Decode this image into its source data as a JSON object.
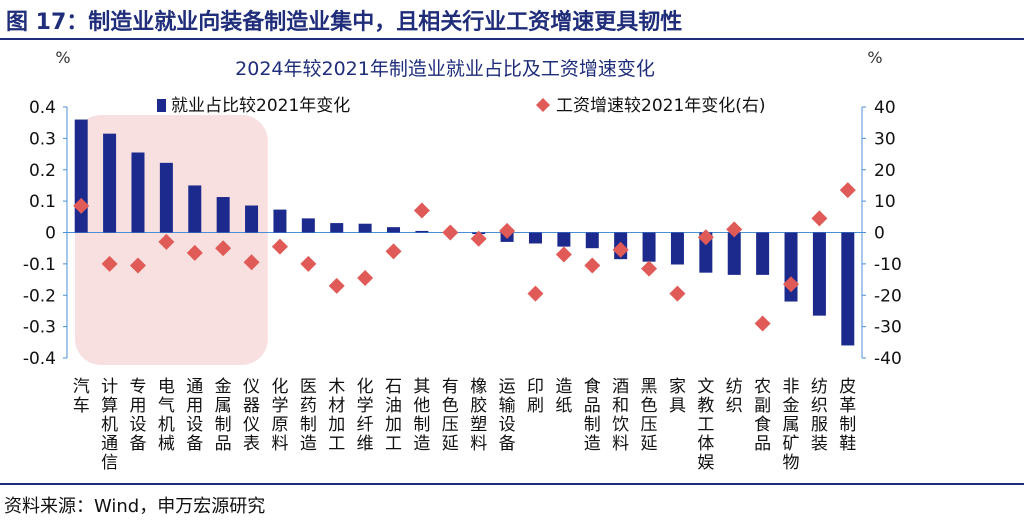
{
  "figure": {
    "caption": "图 17：制造业就业向装备制造业集中，且相关行业工资增速更具韧性",
    "source": "资料来源：Wind，申万宏源研究"
  },
  "colors": {
    "bar": "#1b2a8c",
    "marker": "#e05b57",
    "highlight": "#f8dfe0",
    "brand": "#1f2d7a"
  },
  "chart_data": {
    "type": "bar",
    "title": "2024年较2021年制造业就业占比及工资增速变化",
    "y_left_unit": "%",
    "y_right_unit": "%",
    "ylim_left": [
      -0.4,
      0.4
    ],
    "yticks_left": [
      "0.4",
      "0.3",
      "0.2",
      "0.1",
      "0",
      "-0.1",
      "-0.2",
      "-0.3",
      "-0.4"
    ],
    "ylim_right": [
      -40,
      40
    ],
    "yticks_right": [
      "40",
      "30",
      "20",
      "10",
      "0",
      "-10",
      "-20",
      "-30",
      "-40"
    ],
    "legend_position": "top",
    "categories": [
      "汽车",
      "计算机通信",
      "专用设备",
      "电气机械",
      "通用设备",
      "金属制品",
      "仪器仪表",
      "化学原料",
      "医药制造",
      "木材加工",
      "化学纤维",
      "石油加工",
      "其他制造",
      "有色压延",
      "橡胶塑料",
      "运输设备",
      "印刷",
      "造纸",
      "食品制造",
      "酒和饮料",
      "黑色压延",
      "家具",
      "文教工体娱",
      "纺织",
      "农副食品",
      "非金属矿物",
      "纺织服装",
      "皮革制鞋"
    ],
    "series": [
      {
        "name": "就业占比较2021年变化",
        "type": "bar",
        "axis": "left",
        "values": [
          0.36,
          0.315,
          0.255,
          0.222,
          0.15,
          0.113,
          0.086,
          0.073,
          0.045,
          0.03,
          0.028,
          0.017,
          0.005,
          -0.003,
          -0.005,
          -0.03,
          -0.035,
          -0.045,
          -0.05,
          -0.085,
          -0.093,
          -0.102,
          -0.128,
          -0.135,
          -0.135,
          -0.22,
          -0.265,
          -0.36
        ]
      },
      {
        "name": "工资增速较2021年变化(右)",
        "type": "scatter",
        "axis": "right",
        "values": [
          8.5,
          -10.0,
          -10.5,
          -3.0,
          -6.5,
          -5.0,
          -9.5,
          -4.5,
          -10.0,
          -17.0,
          -14.5,
          -6.0,
          7.0,
          0.0,
          -2.0,
          0.5,
          -19.5,
          -7.0,
          -10.5,
          -5.5,
          -11.5,
          -19.5,
          -1.5,
          1.0,
          -29.0,
          -16.5,
          4.5,
          13.5
        ]
      }
    ],
    "highlight_range": {
      "from": "汽车",
      "to": "仪器仪表"
    }
  }
}
